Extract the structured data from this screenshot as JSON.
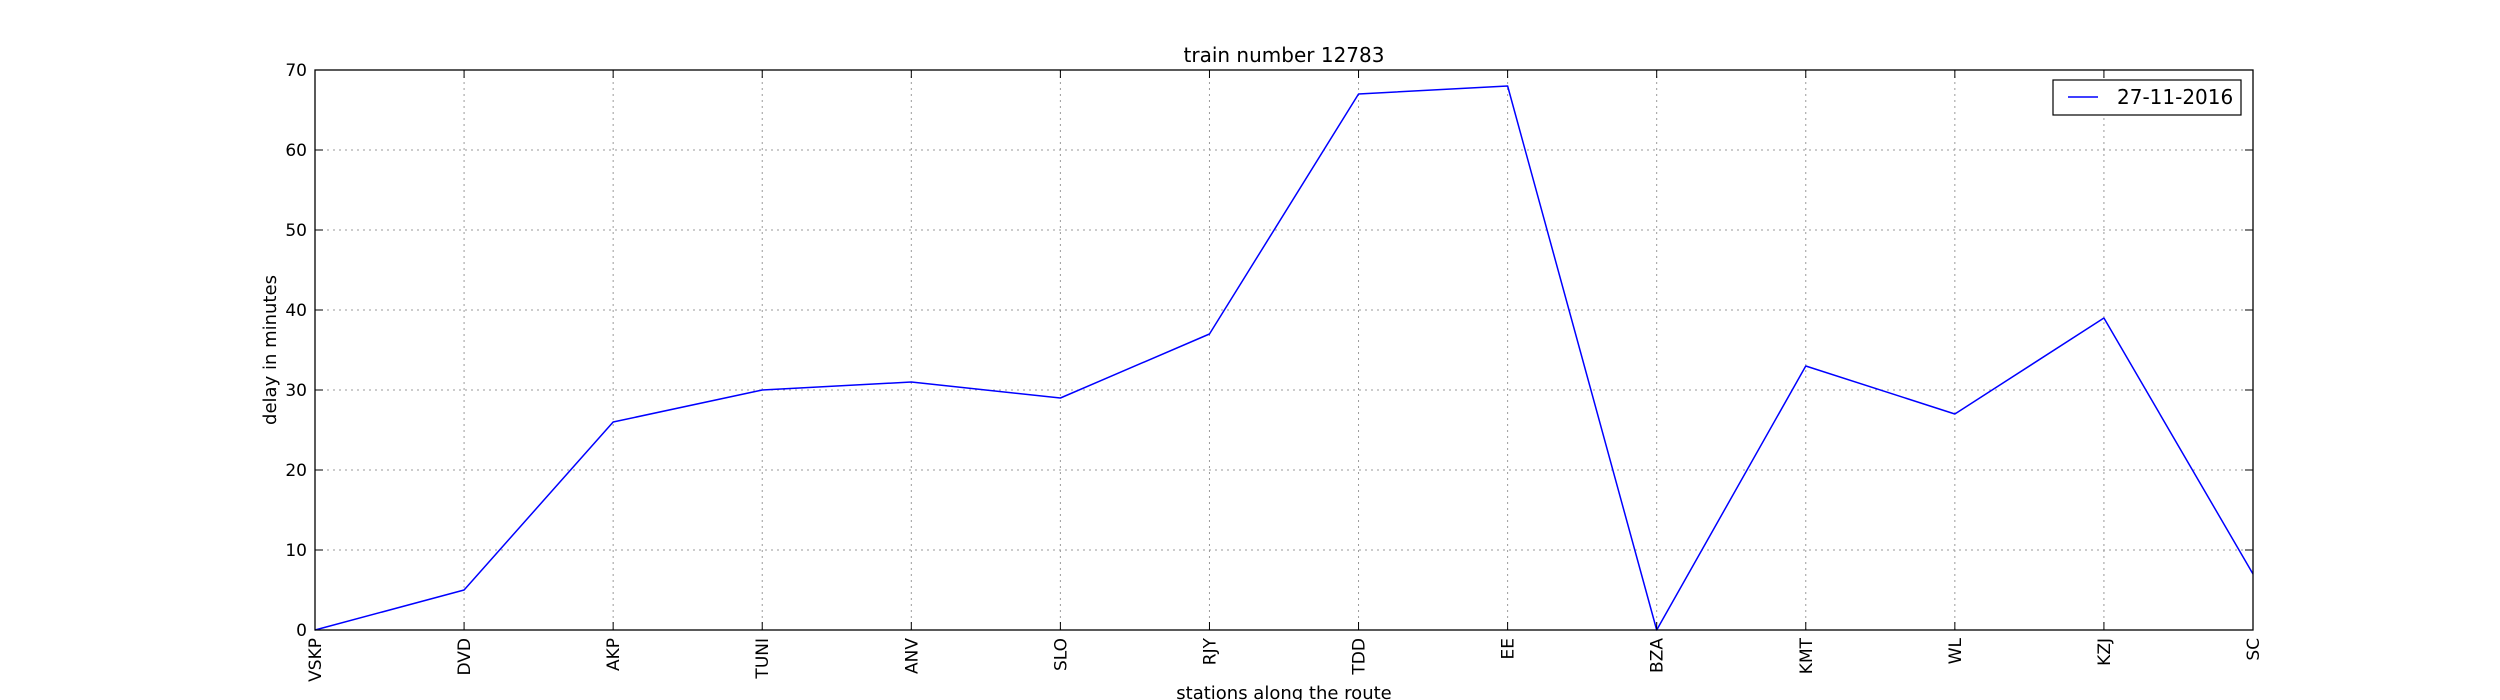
{
  "chart_data": {
    "type": "line",
    "title": "train number 12783",
    "xlabel": "stations along the route",
    "ylabel": "delay in minutes",
    "categories": [
      "VSKP",
      "DVD",
      "AKP",
      "TUNI",
      "ANV",
      "SLO",
      "RJY",
      "TDD",
      "EE",
      "BZA",
      "KMT",
      "WL",
      "KZJ",
      "SC"
    ],
    "series": [
      {
        "name": "27-11-2016",
        "values": [
          0,
          5,
          26,
          30,
          31,
          29,
          37,
          67,
          68,
          0,
          33,
          27,
          39,
          7
        ],
        "color": "#0000ff"
      }
    ],
    "ylim": [
      0,
      70
    ],
    "yticks": [
      0,
      10,
      20,
      30,
      40,
      50,
      60,
      70
    ],
    "grid": true,
    "legend_position": "top-right"
  }
}
